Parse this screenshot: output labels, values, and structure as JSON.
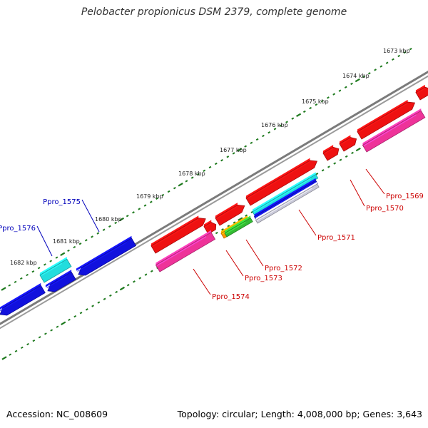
{
  "title": "Pelobacter propionicus DSM 2379, complete genome",
  "footer": {
    "accession": "Accession: NC_008609",
    "topology": "Topology: circular; Length: 4,008,000 bp; Genes: 3,643"
  },
  "colors": {
    "backbone": "#7b7b7b",
    "tick": "#1e7a1e",
    "forward_gene": "#ee1111",
    "reverse_gene": "#1111dd",
    "rna_gene": "#22dddd",
    "magenta_feature": "#ee3399",
    "orange_feature": "#ff9900",
    "green_feature": "#33bb33",
    "grey_feature": "#c8c8d8",
    "forward_label": "#cc0000",
    "reverse_label": "#0000bb"
  },
  "scale_labels": [
    "1673 kbp",
    "1674 kbp",
    "1675 kbp",
    "1676 kbp",
    "1677 kbp",
    "1678 kbp",
    "1679 kbp",
    "1680 kbp",
    "1681 kbp",
    "1682 kbp"
  ],
  "gene_labels": [
    {
      "name": "Ppro_1569",
      "strand": "forward"
    },
    {
      "name": "Ppro_1570",
      "strand": "forward"
    },
    {
      "name": "Ppro_1571",
      "strand": "forward"
    },
    {
      "name": "Ppro_1572",
      "strand": "forward"
    },
    {
      "name": "Ppro_1573",
      "strand": "forward"
    },
    {
      "name": "Ppro_1574",
      "strand": "forward"
    },
    {
      "name": "Ppro_1575",
      "strand": "reverse"
    },
    {
      "name": "Ppro_1576",
      "strand": "reverse"
    }
  ]
}
